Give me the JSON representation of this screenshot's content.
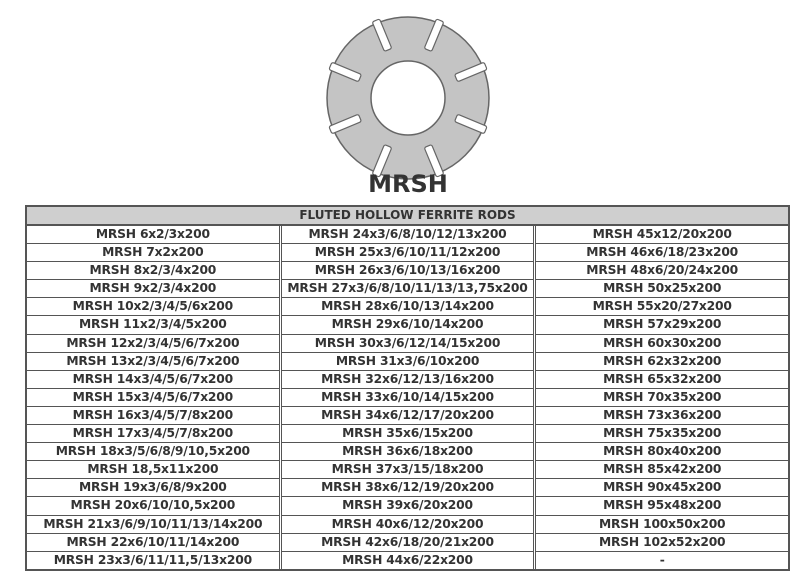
{
  "title": "MRSH",
  "table": {
    "header": "FLUTED HOLLOW FERRITE RODS",
    "columns": [
      [
        "MRSH 6x2/3x200",
        "MRSH 7x2x200",
        "MRSH 8x2/3/4x200",
        "MRSH 9x2/3/4x200",
        "MRSH 10x2/3/4/5/6x200",
        "MRSH 11x2/3/4/5x200",
        "MRSH 12x2/3/4/5/6/7x200",
        "MRSH 13x2/3/4/5/6/7x200",
        "MRSH 14x3/4/5/6/7x200",
        "MRSH 15x3/4/5/6/7x200",
        "MRSH 16x3/4/5/7/8x200",
        "MRSH 17x3/4/5/7/8x200",
        "MRSH 18x3/5/6/8/9/10,5x200",
        "MRSH 18,5x11x200",
        "MRSH 19x3/6/8/9x200",
        "MRSH 20x6/10/10,5x200",
        "MRSH 21x3/6/9/10/11/13/14x200",
        "MRSH 22x6/10/11/14x200",
        "MRSH 23x3/6/11/11,5/13x200"
      ],
      [
        "MRSH 24x3/6/8/10/12/13x200",
        "MRSH 25x3/6/10/11/12x200",
        "MRSH 26x3/6/10/13/16x200",
        "MRSH 27x3/6/8/10/11/13/13,75x200",
        "MRSH 28x6/10/13/14x200",
        "MRSH 29x6/10/14x200",
        "MRSH 30x3/6/12/14/15x200",
        "MRSH 31x3/6/10x200",
        "MRSH 32x6/12/13/16x200",
        "MRSH 33x6/10/14/15x200",
        "MRSH 34x6/12/17/20x200",
        "MRSH 35x6/15x200",
        "MRSH 36x6/18x200",
        "MRSH 37x3/15/18x200",
        "MRSH 38x6/12/19/20x200",
        "MRSH 39x6/20x200",
        "MRSH 40x6/12/20x200",
        "MRSH 42x6/18/20/21x200",
        "MRSH 44x6/22x200"
      ],
      [
        "MRSH 45x12/20x200",
        "MRSH 46x6/18/23x200",
        "MRSH 48x6/20/24x200",
        "MRSH 50x25x200",
        "MRSH 55x20/27x200",
        "MRSH 57x29x200",
        "MRSH 60x30x200",
        "MRSH 62x32x200",
        "MRSH 65x32x200",
        "MRSH 70x35x200",
        "MRSH 73x36x200",
        "MRSH 75x35x200",
        "MRSH 80x40x200",
        "MRSH 85x42x200",
        "MRSH 90x45x200",
        "MRSH 95x48x200",
        "MRSH 100x50x200",
        "MRSH 102x52x200",
        "-"
      ]
    ]
  },
  "colors": {
    "ring": "#c4c4c4",
    "ring_outline": "#666666",
    "header_bg": "#cfcfcf",
    "text": "#333333"
  }
}
